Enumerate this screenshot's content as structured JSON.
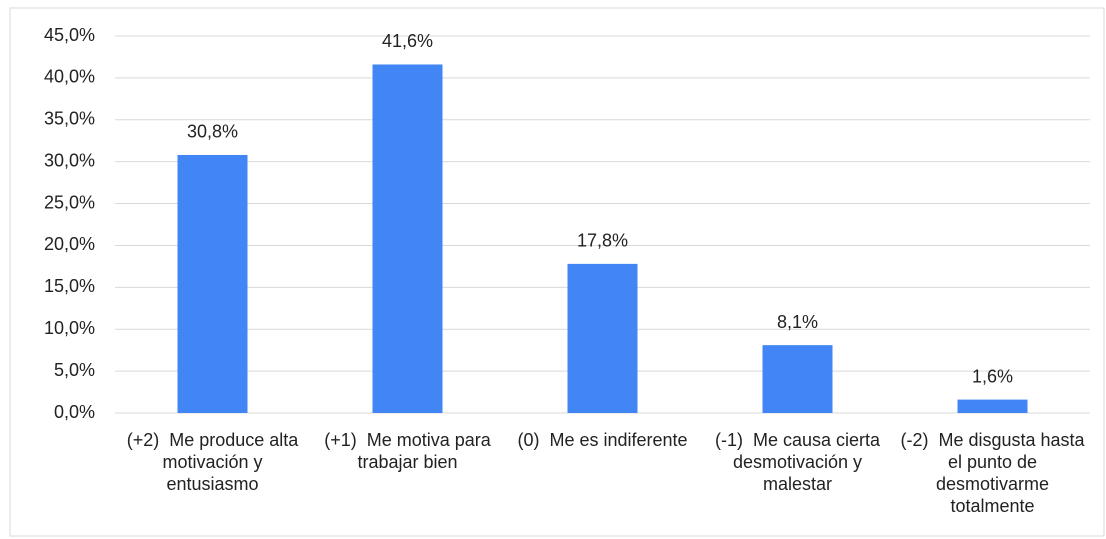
{
  "chart_data": {
    "type": "bar",
    "categories": [
      "(+2)  Me produce alta motivación y entusiasmo",
      "(+1)  Me motiva para trabajar bien",
      "(0)  Me es indiferente",
      "(-1)  Me causa cierta desmotivación y malestar",
      "(-2)  Me disgusta hasta el punto de desmotivarme totalmente"
    ],
    "values": [
      30.8,
      41.6,
      17.8,
      8.1,
      1.6
    ],
    "value_labels": [
      "30,8%",
      "41,6%",
      "17,8%",
      "8,1%",
      "1,6%"
    ],
    "color": "#4285f4",
    "ylim": [
      0,
      45
    ],
    "yticks": [
      {
        "value": 0,
        "label": "0,0%"
      },
      {
        "value": 5,
        "label": "5,0%"
      },
      {
        "value": 10,
        "label": "10,0%"
      },
      {
        "value": 15,
        "label": "15,0%"
      },
      {
        "value": 20,
        "label": "20,0%"
      },
      {
        "value": 25,
        "label": "25,0%"
      },
      {
        "value": 30,
        "label": "30,0%"
      },
      {
        "value": 35,
        "label": "35,0%"
      },
      {
        "value": 40,
        "label": "40,0%"
      },
      {
        "value": 45,
        "label": "45,0%"
      }
    ],
    "grid": true
  }
}
